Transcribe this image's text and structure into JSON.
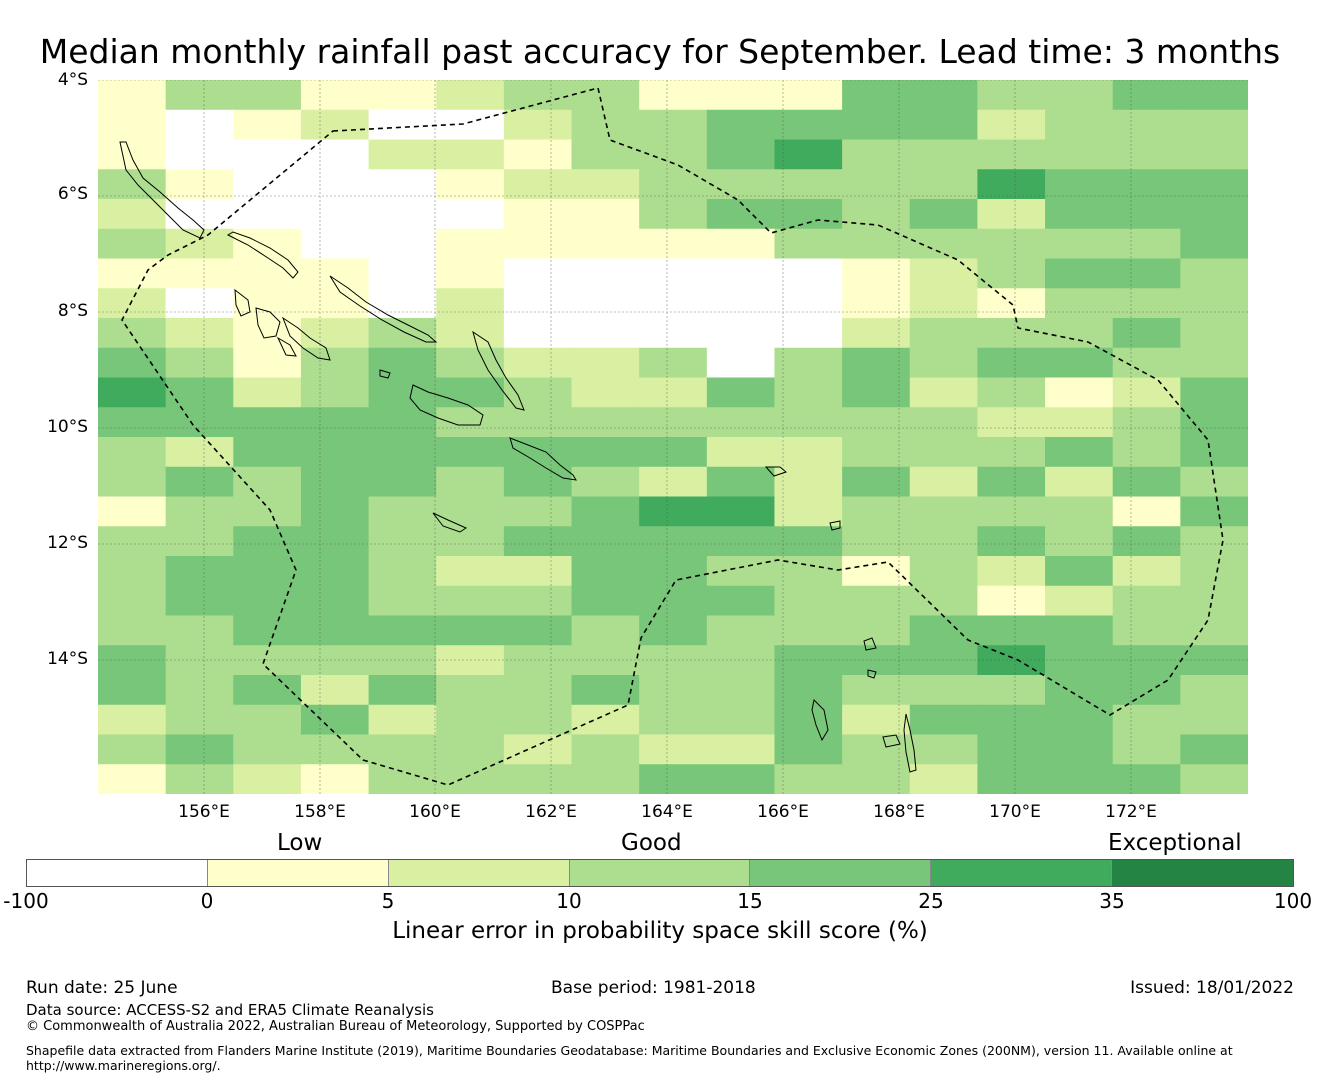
{
  "title": "Median monthly rainfall past accuracy for September. Lead time: 3 months",
  "map": {
    "lat_labels": [
      "4°S",
      "6°S",
      "8°S",
      "10°S",
      "12°S",
      "14°S"
    ],
    "lon_labels": [
      "156°E",
      "158°E",
      "160°E",
      "162°E",
      "164°E",
      "166°E",
      "168°E",
      "170°E",
      "172°E"
    ],
    "grid_rows": [
      "13311233111443344",
      "10120023344442333",
      "10002213345333333",
      "31000122333335444",
      "20000011344342444",
      "32100111113333334",
      "11110100000123443",
      "20110200000121333",
      "32123200000233343",
      "43134322303434433",
      "54234432243423124",
      "44444333333332234",
      "32444444422333434",
      "34344343242424243",
      "13343334552333314",
      "33443344444334343",
      "34443224433132423",
      "34443334443331233",
      "33444443433344433",
      "43333233334445444",
      "43424334334333443",
      "23342332334244433",
      "34333323224334434",
      "13213333443324443"
    ],
    "level_colors": [
      "#ffffff",
      "#ffffcc",
      "#d9f0a3",
      "#addd8e",
      "#78c679",
      "#41ab5d",
      "#238443"
    ]
  },
  "legend": {
    "category_labels": [
      "Low",
      "Good",
      "Exceptional"
    ],
    "ticks": [
      "-100",
      "0",
      "5",
      "10",
      "15",
      "25",
      "35",
      "100"
    ],
    "label": "Linear error in probability space skill score (%)"
  },
  "footer": {
    "run_date": "Run date: 25 June",
    "base_period": "Base period: 1981-2018",
    "issued": "Issued: 18/01/2022",
    "data_source": "Data source: ACCESS-S2 and ERA5 Climate Reanalysis",
    "copyright": "© Commonwealth of Australia 2022, Australian Bureau of Meteorology, Supported by COSPPac",
    "shapefile_line1": "Shapefile data extracted from Flanders Marine Institute (2019), Maritime Boundaries Geodatabase: Maritime Boundaries and Exclusive Economic Zones (200NM), version 11. Available online at",
    "shapefile_line2": "http://www.marineregions.org/."
  }
}
